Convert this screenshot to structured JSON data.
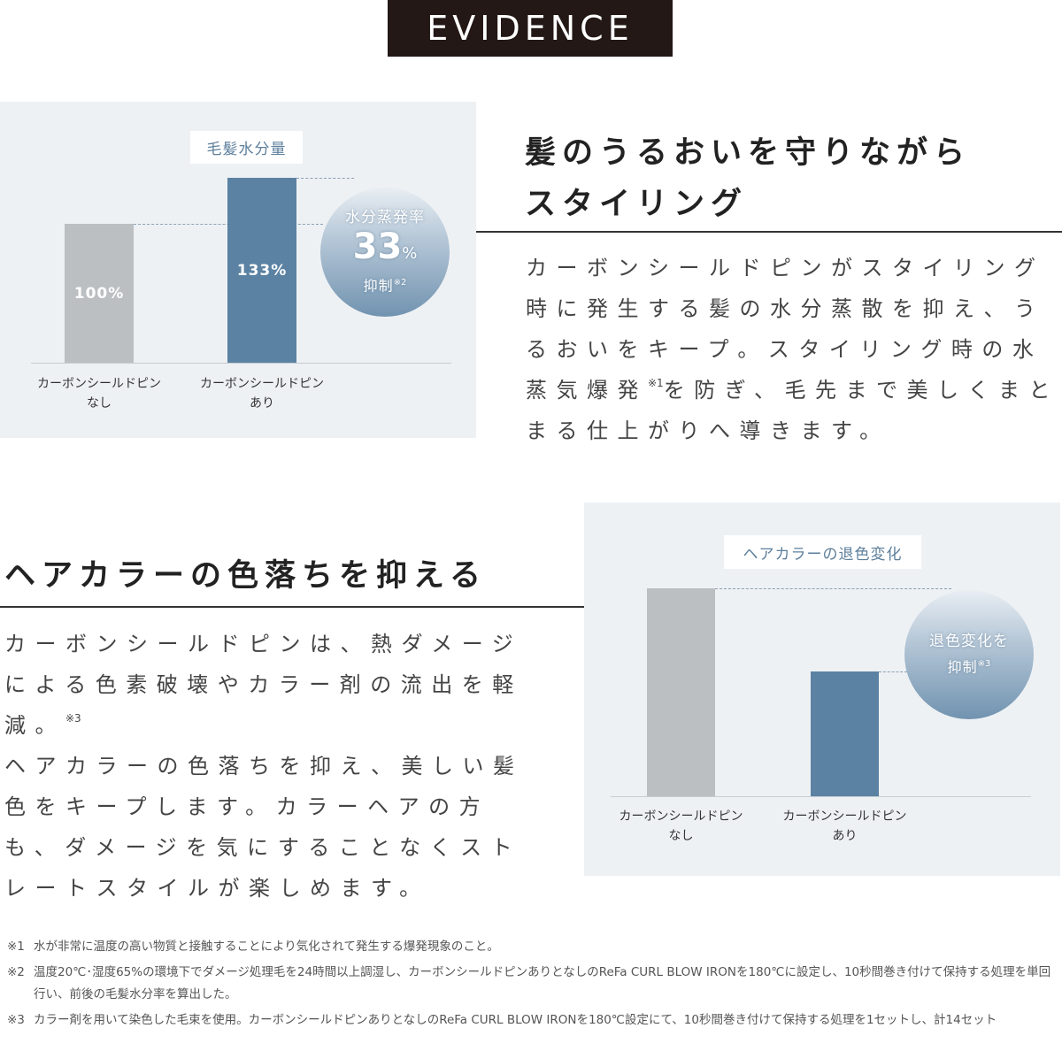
{
  "header": {
    "title": "EVIDENCE"
  },
  "sections": [
    {
      "heading": [
        "髪のうるおいを守りながら",
        "スタイリング"
      ],
      "paragraphs": [
        [
          {
            "text": "カーボンシールドピンがスタイリング時に発生する髪の水分蒸散を抑え、うるおいをキープ。スタイリング時の水蒸気爆発"
          },
          {
            "note": "※1"
          },
          {
            "text": "を防ぎ、毛先まで美しくまとまる仕上がりへ導きます。"
          }
        ]
      ]
    },
    {
      "heading": [
        "ヘアカラーの色落ちを抑える"
      ],
      "paragraphs": [
        [
          {
            "text": "カーボンシールドピンは、熱ダメージによる色素破壊やカラー剤の流出を軽減。"
          },
          {
            "note": "※3"
          }
        ],
        [
          {
            "text": "ヘアカラーの色落ちを抑え、美しい髪色をキープします。カラーヘアの方も、ダメージを気にすることなくストレートスタイルが楽しめます。"
          }
        ]
      ]
    }
  ],
  "chart_data": [
    {
      "type": "bar",
      "title": "毛髪水分量",
      "categories": [
        "カーボンシールドピン\nなし",
        "カーボンシールドピン\nあり"
      ],
      "values": [
        100,
        133
      ],
      "value_labels": [
        "100%",
        "133%"
      ],
      "colors": [
        "#bcbfc2",
        "#5b82a3"
      ],
      "badge": {
        "line1": "水分蒸発率",
        "value": "33",
        "unit": "%",
        "line2": "抑制",
        "note": "※2"
      }
    },
    {
      "type": "bar",
      "title": "ヘアカラーの退色変化",
      "categories": [
        "カーボンシールドピン\nなし",
        "カーボンシールドピン\nあり"
      ],
      "values": [
        100,
        60
      ],
      "colors": [
        "#bcbfc2",
        "#5b82a3"
      ],
      "badge": {
        "line1": "退色変化を",
        "line2": "抑制",
        "note": "※3"
      }
    }
  ],
  "footnotes": [
    {
      "mark": "※1",
      "text": "水が非常に温度の高い物質と接触することにより気化されて発生する爆発現象のこと。"
    },
    {
      "mark": "※2",
      "text": "温度20℃･湿度65%の環境下でダメージ処理毛を24時間以上調湿し、カーボンシールドピンありとなしのReFa CURL BLOW IRONを180℃に設定し、10秒間巻き付けて保持する処理を単回行い、前後の毛髪水分率を算出した。"
    },
    {
      "mark": "※3",
      "text": "カラー剤を用いて染色した毛束を使用。カーボンシールドピンありとなしのReFa CURL BLOW IRONを180℃設定にて、10秒間巻き付けて保持する処理を1セットし、計14セット"
    }
  ]
}
